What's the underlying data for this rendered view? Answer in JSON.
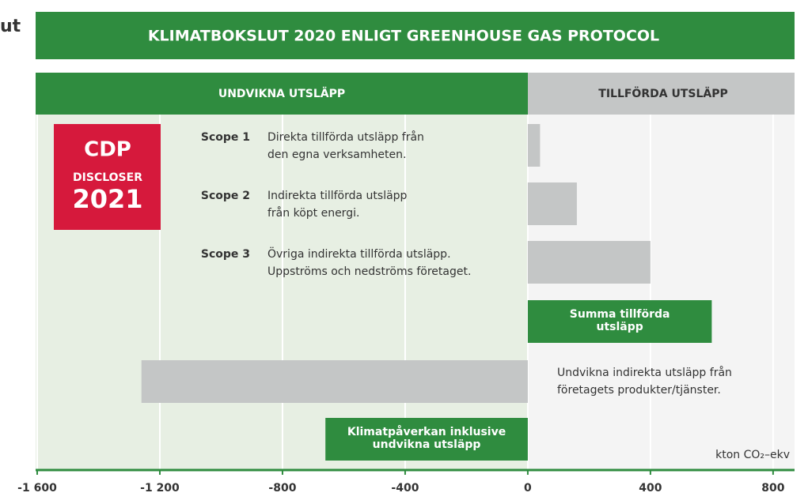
{
  "corner_text": "ut",
  "chart_data": {
    "type": "hbar",
    "title": "KLIMATBOKSLUT 2020 ENLIGT GREENHOUSE GAS PROTOCOL",
    "left_header": "UNDVIKNA UTSLÄPP",
    "right_header": "TILLFÖRDA UTSLÄPP",
    "logo": {
      "brand": "CDP",
      "line1": "DISCLOSER",
      "line2": "2021"
    },
    "unit": "kton CO₂–ekv",
    "bars": [
      {
        "name": "Scope 1",
        "description": [
          "Direkta tillförda utsläpp från",
          "den egna verksamheten."
        ],
        "value": 40,
        "color": "#c4c6c6"
      },
      {
        "name": "Scope 2",
        "description": [
          "Indirekta tillförda utsläpp",
          "från köpt energi."
        ],
        "value": 160,
        "color": "#c4c6c6"
      },
      {
        "name": "Scope 3",
        "description": [
          "Övriga indirekta tillförda utsläpp.",
          "Uppströms och nedströms företaget."
        ],
        "value": 400,
        "color": "#c4c6c6"
      },
      {
        "label": [
          "Summa tillförda",
          "utsläpp"
        ],
        "value": 600,
        "color": "#2f8c3f"
      },
      {
        "description": [
          "Undvikna indirekta utsläpp från",
          "företagets produkter/tjänster."
        ],
        "value": -1260,
        "color": "#c4c6c6"
      },
      {
        "label": [
          "Klimatpåverkan inklusive",
          "undvikna utsläpp"
        ],
        "value": -660,
        "color": "#2f8c3f"
      }
    ],
    "xlim": [
      -1600,
      870
    ],
    "xticks": [
      {
        "value": -1600,
        "label": "-1 600"
      },
      {
        "value": -1200,
        "label": "-1 200"
      },
      -800,
      -400,
      0,
      400,
      800
    ],
    "grid": true
  }
}
